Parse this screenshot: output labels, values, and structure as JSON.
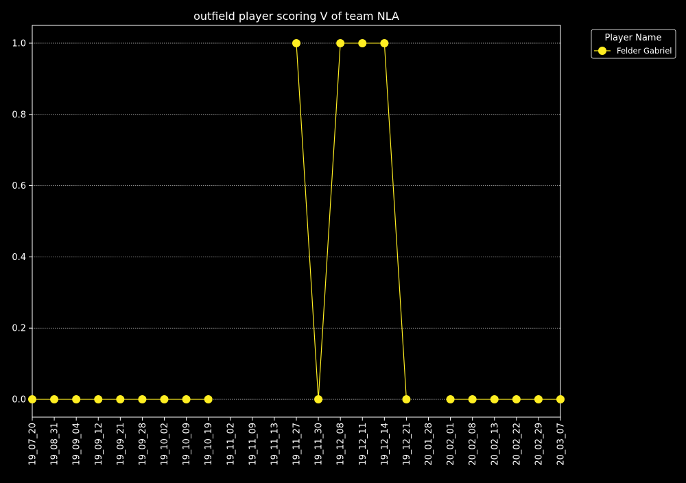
{
  "chart_data": {
    "type": "line",
    "title": "outfield player scoring V of team NLA",
    "xlabel": "",
    "ylabel": "",
    "categories": [
      "19_07_20",
      "19_08_31",
      "19_09_04",
      "19_09_12",
      "19_09_21",
      "19_09_28",
      "19_10_02",
      "19_10_09",
      "19_10_19",
      "19_11_02",
      "19_11_09",
      "19_11_13",
      "19_11_27",
      "19_11_30",
      "19_12_08",
      "19_12_11",
      "19_12_14",
      "19_12_21",
      "20_01_28",
      "20_02_01",
      "20_02_08",
      "20_02_13",
      "20_02_22",
      "20_02_29",
      "20_03_07"
    ],
    "series": [
      {
        "name": "Felder Gabriel",
        "color": "#ffee22",
        "values": [
          0,
          0,
          0,
          0,
          0,
          0,
          0,
          0,
          0,
          null,
          null,
          null,
          1,
          0,
          1,
          1,
          1,
          0,
          null,
          0,
          0,
          0,
          0,
          0,
          0
        ]
      }
    ],
    "ylim": [
      -0.05,
      1.05
    ],
    "yticks": [
      0.0,
      0.2,
      0.4,
      0.6,
      0.8,
      1.0
    ],
    "ytick_labels": [
      "0.0",
      "0.2",
      "0.4",
      "0.6",
      "0.8",
      "1.0"
    ],
    "grid": true,
    "legend": {
      "title": "Player Name",
      "placement": "outside-top-right"
    }
  },
  "colors": {
    "background": "#000000",
    "foreground": "#ffffff",
    "grid": "#bbbbbb"
  }
}
